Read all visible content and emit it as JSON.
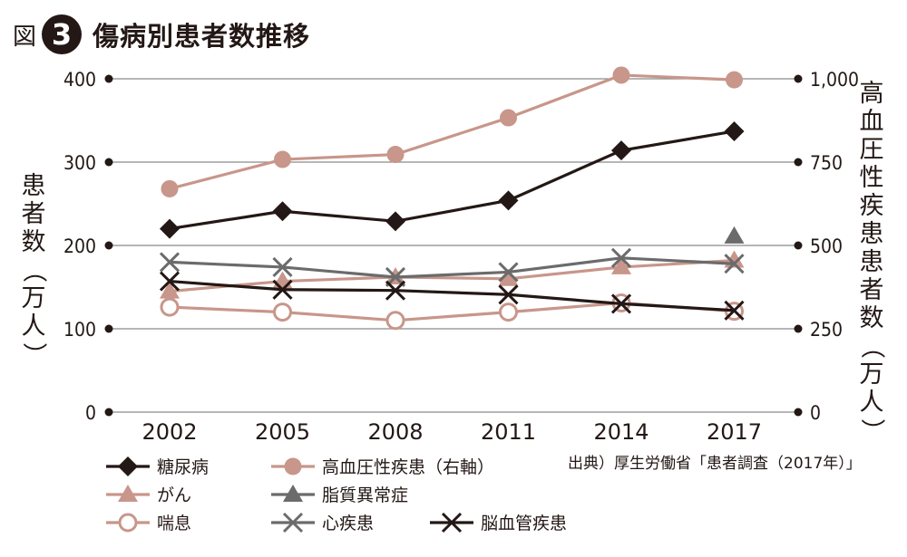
{
  "figure": {
    "label": "図",
    "number": "3",
    "title": "傷病別患者数推移"
  },
  "source": "出典）厚生労働省「患者調査（2017年）」",
  "chart_data": {
    "type": "line",
    "title": "傷病別患者数推移",
    "x": [
      "2002",
      "2005",
      "2008",
      "2011",
      "2014",
      "2017"
    ],
    "ylabel": "患者数（万人）",
    "ylabel_right": "高血圧性疾患患者数（万人）",
    "ylim": [
      0,
      400
    ],
    "ylim_right": [
      0,
      1000
    ],
    "yticks": [
      "400",
      "300",
      "200",
      "100",
      "0"
    ],
    "yticks_right": [
      "1,000",
      "750",
      "500",
      "250",
      "0"
    ],
    "grid": "horizontal",
    "legend_position": "bottom",
    "series": [
      {
        "name": "糖尿病",
        "axis": "left",
        "marker": "diamond",
        "color": "#231815",
        "values": [
          220,
          241,
          229,
          254,
          314,
          337
        ]
      },
      {
        "name": "高血圧性疾患（右軸）",
        "axis": "right",
        "marker": "circle",
        "color": "#c8968a",
        "values": [
          670,
          758,
          773,
          883,
          1011,
          997
        ]
      },
      {
        "name": "がん",
        "axis": "left",
        "marker": "triangle",
        "color": "#c8968a",
        "values": [
          145,
          157,
          162,
          160,
          174,
          182
        ]
      },
      {
        "name": "脂質異常症",
        "axis": "left",
        "marker": "triangle",
        "color": "#6b6b6b",
        "values": [
          null,
          null,
          null,
          null,
          null,
          211
        ]
      },
      {
        "name": "喘息",
        "axis": "left",
        "marker": "circle-open",
        "color": "#c8968a",
        "values": [
          126,
          120,
          110,
          120,
          131,
          121
        ]
      },
      {
        "name": "心疾患",
        "axis": "left",
        "marker": "x",
        "color": "#6b6b6b",
        "values": [
          180,
          174,
          162,
          168,
          185,
          178
        ]
      },
      {
        "name": "脳血管疾患",
        "axis": "left",
        "marker": "x",
        "color": "#231815",
        "values": [
          157,
          147,
          146,
          141,
          130,
          122
        ]
      }
    ]
  }
}
